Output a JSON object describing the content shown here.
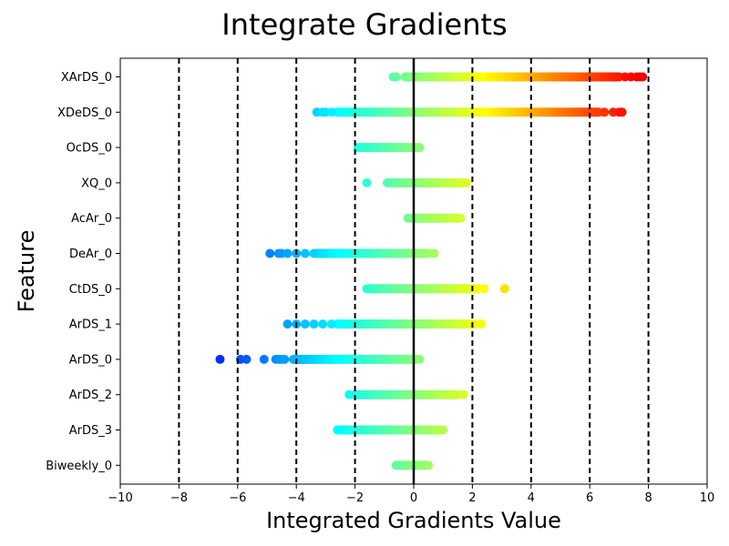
{
  "chart_data": {
    "type": "scatter",
    "title": "Integrate Gradients",
    "xlabel": "Integrated Gradients Value",
    "ylabel": "Feature",
    "xlim": [
      -10,
      10
    ],
    "x_ticks": [
      -10,
      -8,
      -6,
      -4,
      -2,
      0,
      2,
      4,
      6,
      8,
      10
    ],
    "x_tick_labels": [
      "−10",
      "−8",
      "−6",
      "−4",
      "−2",
      "0",
      "2",
      "4",
      "6",
      "8",
      "10"
    ],
    "reference_lines": {
      "dashed_vertical_at": [
        -8,
        -6,
        -4,
        -2,
        2,
        4,
        6,
        8
      ],
      "solid_vertical_at": [
        0
      ]
    },
    "color_scale": "jet",
    "color_range": [
      -10,
      10
    ],
    "categories": [
      "XArDS_0",
      "XDeDS_0",
      "OcDS_0",
      "XQ_0",
      "AcAr_0",
      "DeAr_0",
      "CtDS_0",
      "ArDS_1",
      "ArDS_0",
      "ArDS_2",
      "ArDS_3",
      "Biweekly_0"
    ],
    "series": [
      {
        "feature": "XArDS_0",
        "dense_range": [
          -0.3,
          7.0
        ],
        "outliers": [
          -0.7,
          -0.6,
          7.2,
          7.4,
          7.6,
          7.7,
          7.8
        ]
      },
      {
        "feature": "XDeDS_0",
        "dense_range": [
          -2.6,
          6.3
        ],
        "outliers": [
          -3.3,
          -3.1,
          -3.0,
          -2.8,
          6.5,
          6.8,
          7.0,
          7.1
        ]
      },
      {
        "feature": "OcDS_0",
        "dense_range": [
          -1.9,
          0.1
        ],
        "outliers": [
          0.2
        ]
      },
      {
        "feature": "XQ_0",
        "dense_range": [
          -0.8,
          1.7
        ],
        "outliers": [
          -1.6,
          -0.9,
          1.8
        ]
      },
      {
        "feature": "AcAr_0",
        "dense_range": [
          -0.1,
          1.5
        ],
        "outliers": [
          -0.2,
          1.6
        ]
      },
      {
        "feature": "DeAr_0",
        "dense_range": [
          -3.3,
          0.5
        ],
        "outliers": [
          -4.9,
          -4.6,
          -4.5,
          -4.3,
          -4.0,
          -3.7,
          -3.4,
          0.7
        ]
      },
      {
        "feature": "CtDS_0",
        "dense_range": [
          -1.5,
          2.2
        ],
        "outliers": [
          -1.6,
          2.4,
          3.1
        ]
      },
      {
        "feature": "ArDS_1",
        "dense_range": [
          -2.6,
          2.1
        ],
        "outliers": [
          -4.3,
          -4.0,
          -3.7,
          -3.4,
          -3.1,
          -2.8,
          2.3
        ]
      },
      {
        "feature": "ArDS_0",
        "dense_range": [
          -4.1,
          0.1
        ],
        "outliers": [
          -6.6,
          -5.9,
          -5.7,
          -5.1,
          -4.7,
          -4.6,
          -4.5,
          -4.4,
          0.2
        ]
      },
      {
        "feature": "ArDS_2",
        "dense_range": [
          -2.0,
          1.5
        ],
        "outliers": [
          -2.2,
          1.7
        ]
      },
      {
        "feature": "ArDS_3",
        "dense_range": [
          -2.5,
          0.9
        ],
        "outliers": [
          -2.6,
          1.0
        ]
      },
      {
        "feature": "Biweekly_0",
        "dense_range": [
          -0.5,
          0.4
        ],
        "outliers": [
          -0.6,
          0.5
        ]
      }
    ]
  }
}
